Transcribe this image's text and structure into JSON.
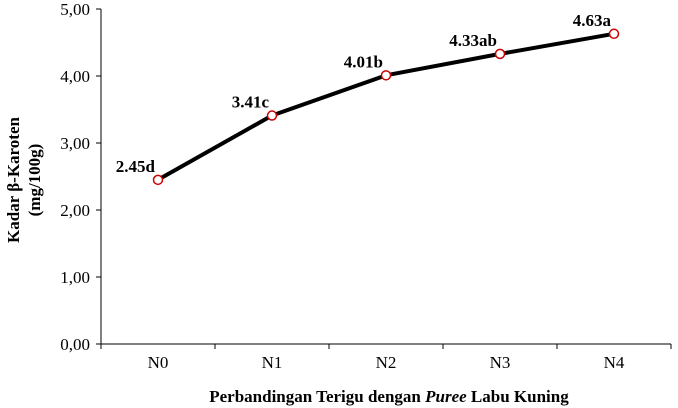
{
  "chart_data": {
    "type": "line",
    "categories": [
      "N0",
      "N1",
      "N2",
      "N3",
      "N4"
    ],
    "values": [
      2.45,
      3.41,
      4.01,
      4.33,
      4.63
    ],
    "data_labels": [
      "2.45d",
      "3.41c",
      "4.01b",
      "4.33ab",
      "4.63a"
    ],
    "ylabel_line1": "Kadar  β-Karoten",
    "ylabel_line2": "(mg/100g)",
    "xlabel_prefix": "Perbandingan Terigu dengan ",
    "xlabel_italic": "Puree",
    "xlabel_suffix": " Labu Kuning",
    "ylim": [
      0,
      5
    ],
    "yticks": [
      0,
      1,
      2,
      3,
      4,
      5
    ],
    "ytick_labels": [
      "0,00",
      "1,00",
      "2,00",
      "3,00",
      "4,00",
      "5,00"
    ],
    "grid": false,
    "line_color": "#000000",
    "marker_edge_color": "#cc0000",
    "marker_fill_color": "#ffffff"
  }
}
